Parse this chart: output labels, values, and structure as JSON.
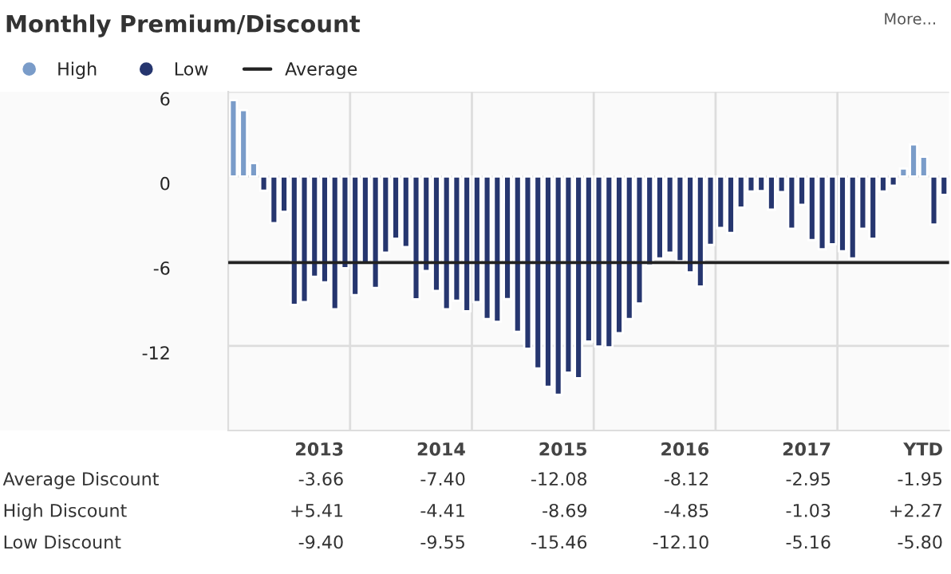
{
  "chart_data": {
    "type": "bar",
    "title": "Monthly Premium/Discount",
    "categories": [
      null,
      null,
      null,
      null,
      null,
      null,
      null,
      null,
      null,
      null,
      null,
      null,
      null,
      null,
      null,
      null,
      null,
      null,
      null,
      null,
      null,
      null,
      null,
      null,
      null,
      null,
      null,
      null,
      null,
      null,
      null,
      null,
      null,
      null,
      null,
      null,
      null,
      null,
      null,
      null,
      null,
      null,
      null,
      null,
      null,
      null,
      null,
      null,
      null,
      null,
      null,
      null,
      null,
      null,
      null,
      null,
      null,
      null,
      null,
      null,
      null,
      null,
      null,
      null,
      null,
      null,
      null,
      null,
      null,
      null,
      null
    ],
    "series": [
      {
        "name": "High",
        "color": "#7a9cc9",
        "values": [
          5.41,
          4.7,
          0.95,
          null,
          null,
          null,
          null,
          null,
          null,
          null,
          null,
          null,
          null,
          null,
          null,
          null,
          null,
          null,
          null,
          null,
          null,
          null,
          null,
          null,
          null,
          null,
          null,
          null,
          null,
          null,
          null,
          null,
          null,
          null,
          null,
          null,
          null,
          null,
          null,
          null,
          null,
          null,
          null,
          null,
          null,
          null,
          null,
          null,
          null,
          null,
          null,
          null,
          null,
          null,
          null,
          null,
          null,
          null,
          null,
          null,
          null,
          null,
          null,
          null,
          null,
          null,
          0.57,
          2.27,
          1.4,
          null,
          null
        ]
      },
      {
        "name": "Low",
        "color": "#26366f",
        "values": [
          null,
          null,
          null,
          -1.0,
          -3.3,
          -2.5,
          -9.1,
          -8.9,
          -7.1,
          -7.5,
          -9.4,
          -6.5,
          -8.4,
          -6.1,
          -7.9,
          -5.4,
          -4.41,
          -5.0,
          -8.7,
          -6.7,
          -8.1,
          -9.4,
          -8.8,
          -9.55,
          -8.9,
          -10.1,
          -10.3,
          -8.69,
          -11.0,
          -12.2,
          -13.6,
          -14.9,
          -15.46,
          -13.9,
          -14.3,
          -11.7,
          -12.05,
          -12.1,
          -11.1,
          -10.1,
          -9.0,
          -6.3,
          -5.8,
          -5.4,
          -6.0,
          -6.8,
          -7.8,
          -4.85,
          -3.65,
          -4.0,
          -2.2,
          -1.06,
          -1.03,
          -2.35,
          -1.1,
          -3.7,
          -2.0,
          -4.5,
          -5.16,
          -4.8,
          -5.3,
          -5.8,
          -3.7,
          -4.4,
          -1.06,
          -0.65,
          null,
          null,
          null,
          -3.4,
          -1.3
        ]
      }
    ],
    "ylim": [
      -18,
      6
    ],
    "yticks": [
      6,
      0,
      -6,
      -12
    ],
    "grid": "y",
    "legend": "top left",
    "tick_labels": "y",
    "ref_lines": [
      {
        "axis": "y",
        "value": -6.1,
        "label": "Average",
        "color": "#222222"
      }
    ],
    "annotations": [
      "More...",
      "2013",
      "2014",
      "2015",
      "2016",
      "2017",
      "YTD",
      "Average Discount",
      "-3.66",
      "-7.40",
      "-12.08",
      "-8.12",
      "-2.95",
      "-1.95",
      "High Discount",
      "+5.41",
      "-4.41",
      "-8.69",
      "-4.85",
      "-1.03",
      "+2.27",
      "Low Discount",
      "-9.40",
      "-9.55",
      "-15.46",
      "-12.10",
      "-5.16",
      "-5.80"
    ]
  }
}
